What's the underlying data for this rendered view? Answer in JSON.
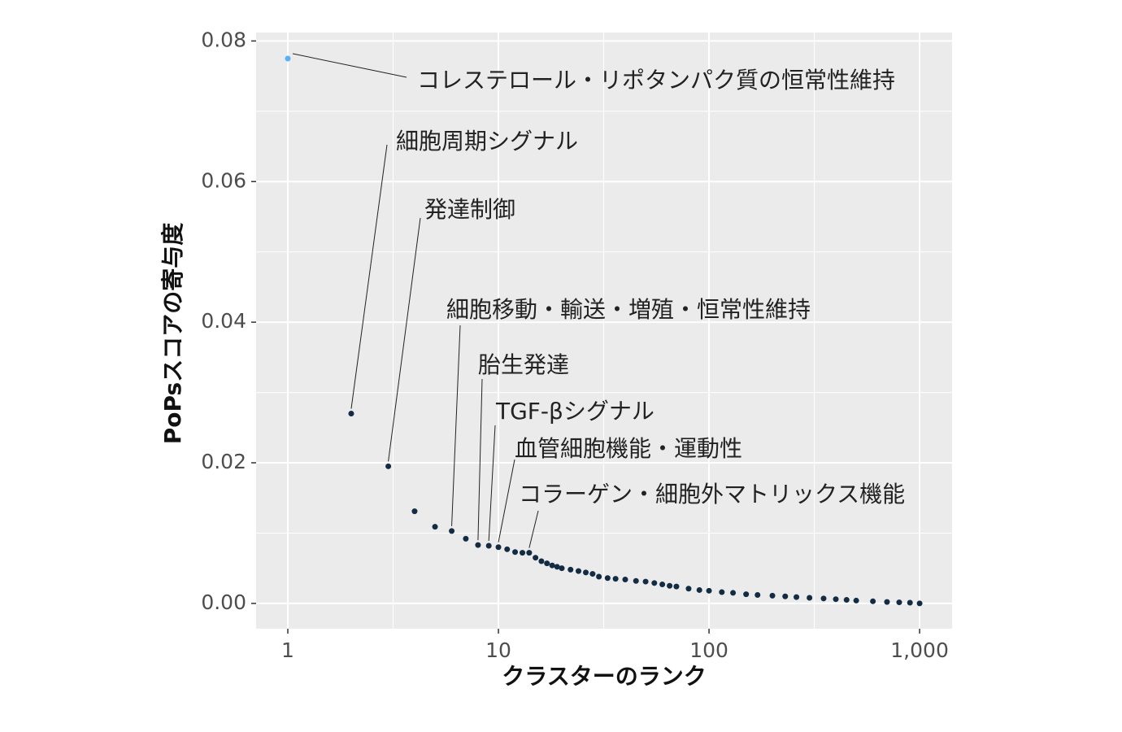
{
  "chart_data": {
    "type": "scatter",
    "x_label": "クラスターのランク",
    "y_label": "PoPsスコアの寄与度",
    "x_log": true,
    "grid": true,
    "minor_grid": true,
    "xlim": [
      0.707,
      1426
    ],
    "ylim": [
      -0.0036,
      0.0812
    ],
    "xticks": [
      1,
      10,
      100,
      {
        "value": 1000,
        "label": "1,000"
      }
    ],
    "yticks": [
      {
        "value": 0,
        "label": "0.00"
      },
      {
        "value": 0.02,
        "label": "0.02"
      },
      {
        "value": 0.04,
        "label": "0.04"
      },
      {
        "value": 0.06,
        "label": "0.06"
      },
      {
        "value": 0.08,
        "label": "0.08"
      }
    ],
    "color": "#132B43",
    "highlight_color": "#56B1F7",
    "x": [
      1,
      2,
      3,
      4,
      5,
      6,
      7,
      8,
      9,
      10,
      11,
      12,
      13,
      14,
      15,
      16,
      17,
      18,
      19,
      20,
      22,
      24,
      26,
      28,
      30,
      33,
      36,
      40,
      45,
      50,
      55,
      60,
      65,
      70,
      80,
      90,
      100,
      115,
      130,
      150,
      170,
      200,
      230,
      260,
      300,
      350,
      400,
      450,
      500,
      600,
      700,
      800,
      900,
      1000
    ],
    "y": [
      0.0775,
      0.027,
      0.0195,
      0.0131,
      0.0109,
      0.0103,
      0.0092,
      0.0083,
      0.0082,
      0.008,
      0.0077,
      0.0073,
      0.0072,
      0.0072,
      0.0065,
      0.006,
      0.0057,
      0.0054,
      0.0052,
      0.005,
      0.0048,
      0.0046,
      0.0044,
      0.0042,
      0.0038,
      0.0036,
      0.0035,
      0.0034,
      0.0032,
      0.0031,
      0.0029,
      0.0027,
      0.0025,
      0.0024,
      0.0021,
      0.0019,
      0.0018,
      0.0016,
      0.0015,
      0.0013,
      0.0012,
      0.0011,
      0.001,
      0.0009,
      0.0008,
      0.0007,
      0.0006,
      0.0005,
      0.0004,
      0.0003,
      0.0002,
      0.00015,
      0.0001,
      0.0
    ],
    "annotations": [
      {
        "text": "コレステロール・リポタンパク質の恒常性維持",
        "x": 1
      },
      {
        "text": "細胞周期シグナル",
        "x": 2
      },
      {
        "text": "発達制御",
        "x": 3
      },
      {
        "text": "細胞移動・輸送・増殖・恒常性維持",
        "x": 6
      },
      {
        "text": "胎生発達",
        "x": 8
      },
      {
        "text": "TGF-βシグナル",
        "x": 9
      },
      {
        "text": "血管細胞機能・運動性",
        "x": 10
      },
      {
        "text": "コラーゲン・細胞外マトリックス機能",
        "x": 14
      }
    ]
  }
}
